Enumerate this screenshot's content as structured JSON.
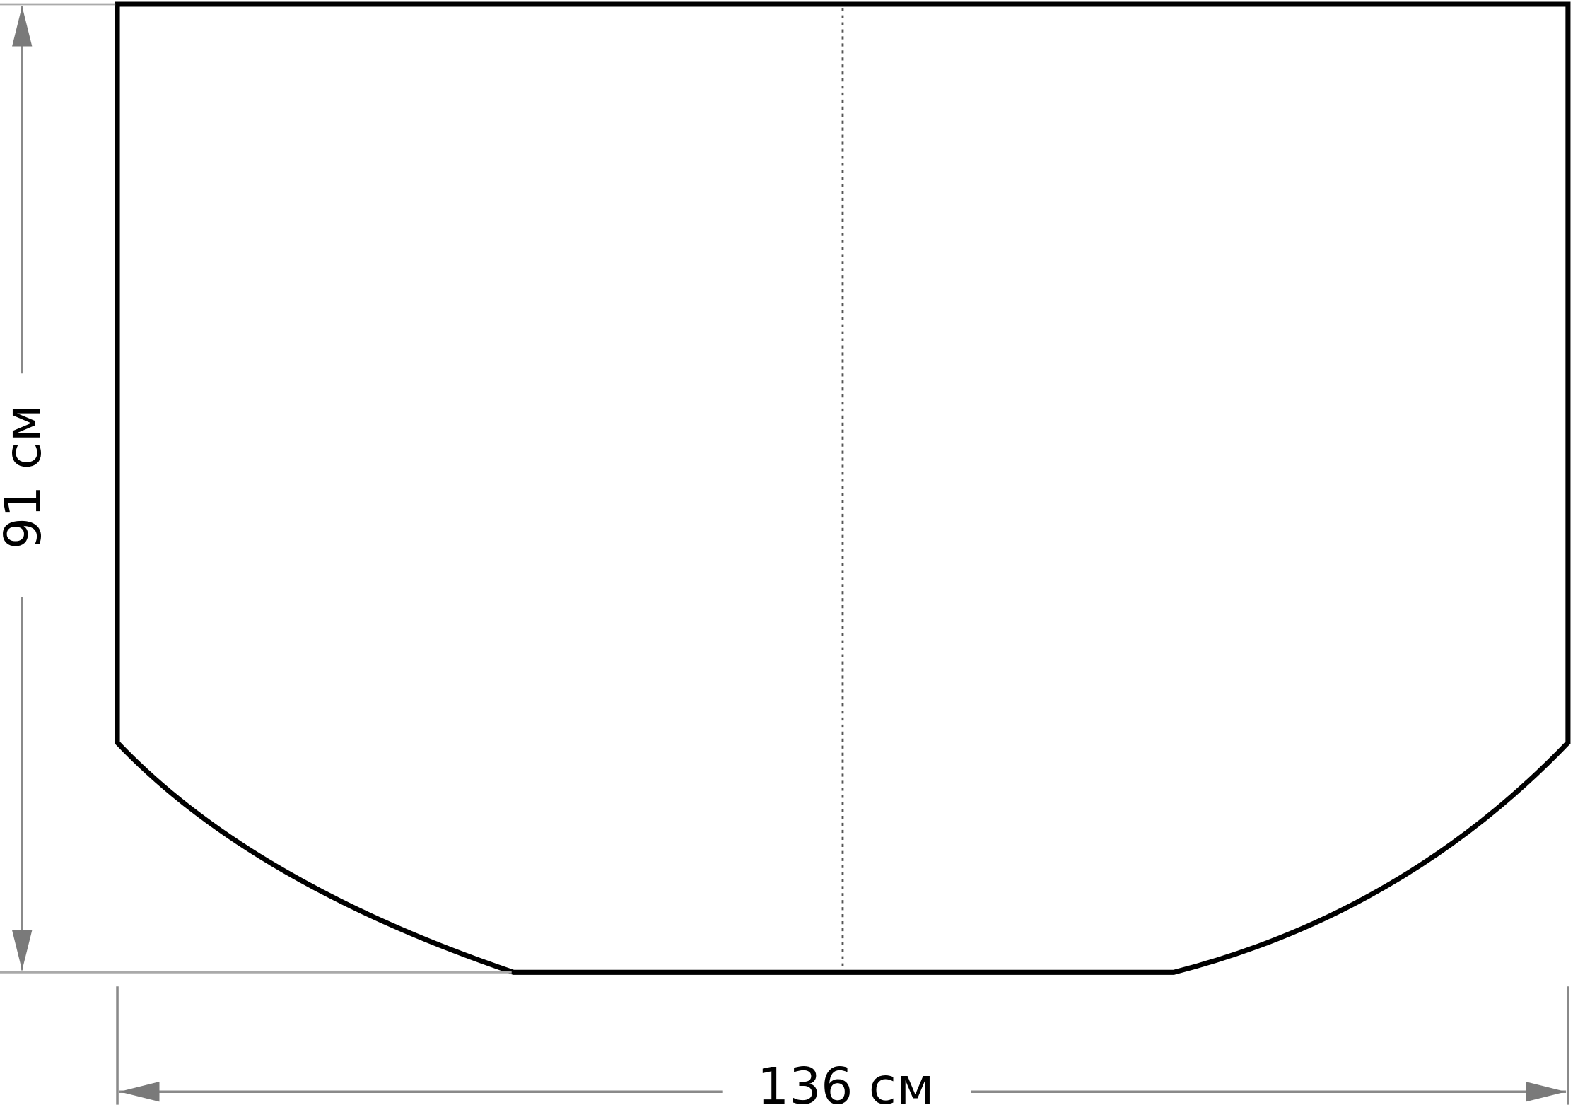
{
  "diagram": {
    "height_label": "91 см",
    "width_label": "136 см",
    "colors": {
      "outline": "#000000",
      "dimension_lines": "#8a8a8a",
      "center_line": "#555555"
    }
  }
}
